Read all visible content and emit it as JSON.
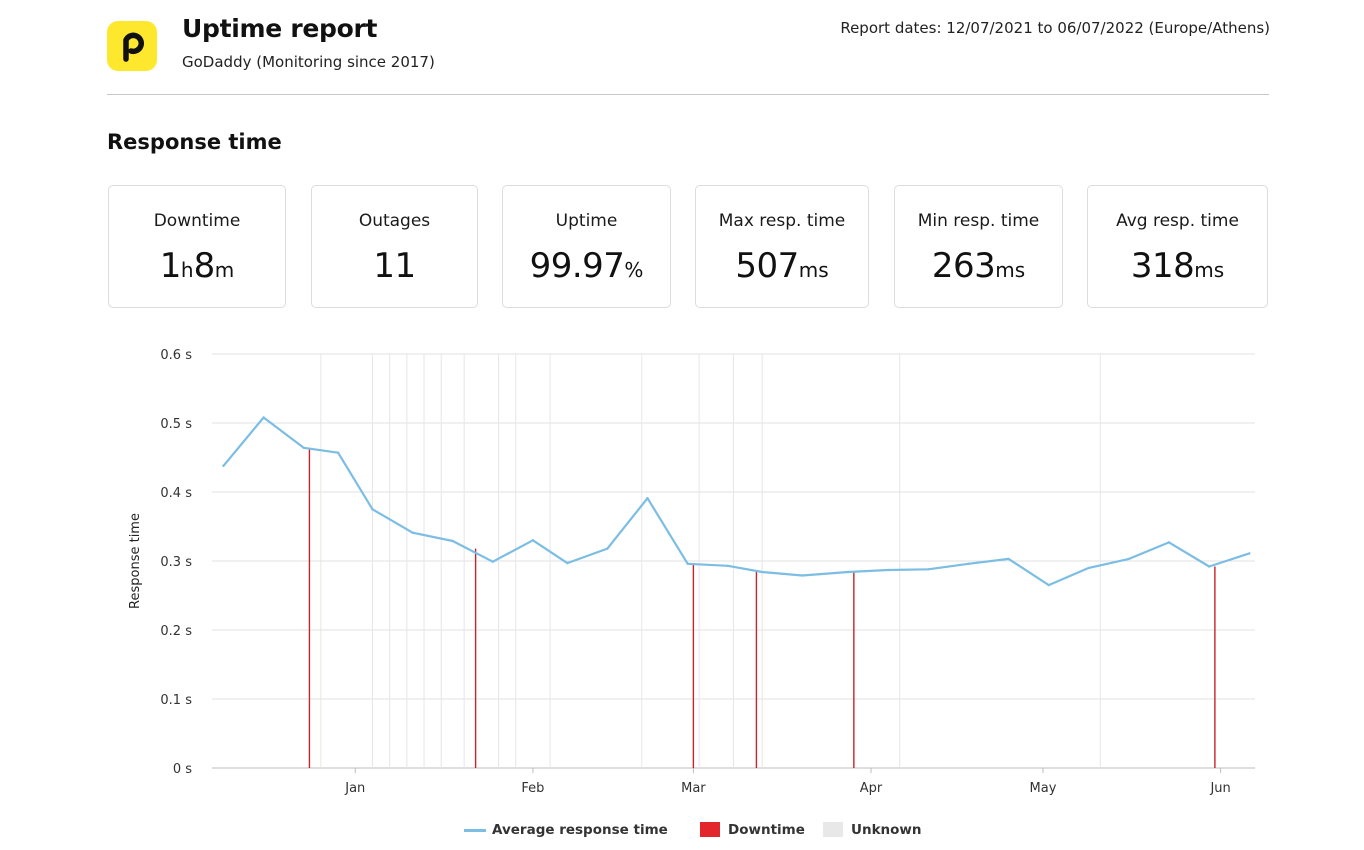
{
  "header": {
    "title": "Uptime report",
    "subtitle": "GoDaddy (Monitoring since 2017)",
    "report_dates": "Report dates: 12/07/2021 to 06/07/2022 (Europe/Athens)",
    "logo_color": "#fde82e"
  },
  "section_title": "Response time",
  "stats": [
    {
      "label": "Downtime",
      "value_parts": [
        {
          "text": "1",
          "unit": false
        },
        {
          "text": "h",
          "unit": true
        },
        {
          "text": "8",
          "unit": false
        },
        {
          "text": "m",
          "unit": true
        }
      ]
    },
    {
      "label": "Outages",
      "value_parts": [
        {
          "text": "11",
          "unit": false
        }
      ]
    },
    {
      "label": "Uptime",
      "value_parts": [
        {
          "text": "99.97",
          "unit": false
        },
        {
          "text": "%",
          "unit": true
        }
      ]
    },
    {
      "label": "Max resp. time",
      "value_parts": [
        {
          "text": "507",
          "unit": false
        },
        {
          "text": "ms",
          "unit": true
        }
      ]
    },
    {
      "label": "Min resp. time",
      "value_parts": [
        {
          "text": "263",
          "unit": false
        },
        {
          "text": "ms",
          "unit": true
        }
      ]
    },
    {
      "label": "Avg resp. time",
      "value_parts": [
        {
          "text": "318",
          "unit": false
        },
        {
          "text": "ms",
          "unit": true
        }
      ]
    }
  ],
  "chart_data": {
    "type": "line",
    "title": "",
    "xlabel": "",
    "ylabel": "Response time",
    "x_type": "date",
    "x_range": [
      "2021-12-07",
      "2022-06-07"
    ],
    "ylim": [
      0,
      0.6
    ],
    "y_ticks": [
      0,
      0.1,
      0.2,
      0.3,
      0.4,
      0.5,
      0.6
    ],
    "y_tick_labels": [
      "0 s",
      "0.1 s",
      "0.2 s",
      "0.3 s",
      "0.4 s",
      "0.5 s",
      "0.6 s"
    ],
    "x_tick_labels": [
      {
        "date": "2022-01-01",
        "label": "Jan"
      },
      {
        "date": "2022-02-01",
        "label": "Feb"
      },
      {
        "date": "2022-03-01",
        "label": "Mar"
      },
      {
        "date": "2022-04-01",
        "label": "Apr"
      },
      {
        "date": "2022-05-01",
        "label": "May"
      },
      {
        "date": "2022-06-01",
        "label": "Jun"
      }
    ],
    "grid": true,
    "legend_position": "bottom",
    "series": [
      {
        "name": "Average response time",
        "color": "#7cbde4",
        "points": [
          [
            "2021-12-09",
            0.438
          ],
          [
            "2021-12-16",
            0.508
          ],
          [
            "2021-12-23",
            0.464
          ],
          [
            "2021-12-29",
            0.457
          ],
          [
            "2022-01-04",
            0.375
          ],
          [
            "2022-01-11",
            0.341
          ],
          [
            "2022-01-18",
            0.329
          ],
          [
            "2022-01-25",
            0.299
          ],
          [
            "2022-02-01",
            0.33
          ],
          [
            "2022-02-07",
            0.297
          ],
          [
            "2022-02-14",
            0.318
          ],
          [
            "2022-02-21",
            0.391
          ],
          [
            "2022-02-28",
            0.296
          ],
          [
            "2022-03-07",
            0.293
          ],
          [
            "2022-03-13",
            0.284
          ],
          [
            "2022-03-20",
            0.279
          ],
          [
            "2022-03-28",
            0.284
          ],
          [
            "2022-04-04",
            0.287
          ],
          [
            "2022-04-11",
            0.288
          ],
          [
            "2022-04-18",
            0.296
          ],
          [
            "2022-04-25",
            0.303
          ],
          [
            "2022-05-02",
            0.265
          ],
          [
            "2022-05-09",
            0.29
          ],
          [
            "2022-05-16",
            0.303
          ],
          [
            "2022-05-23",
            0.327
          ],
          [
            "2022-05-30",
            0.292
          ],
          [
            "2022-06-06",
            0.311
          ]
        ]
      }
    ],
    "downtime_events": [
      {
        "date": "2021-12-24",
        "value": 0.464
      },
      {
        "date": "2022-01-22",
        "value": 0.318
      },
      {
        "date": "2022-03-01",
        "value": 0.296
      },
      {
        "date": "2022-03-12",
        "value": 0.285
      },
      {
        "date": "2022-03-29",
        "value": 0.284
      },
      {
        "date": "2022-05-31",
        "value": 0.292
      }
    ],
    "unknown_events": [
      "2021-12-26",
      "2022-01-04",
      "2022-01-07",
      "2022-01-10",
      "2022-01-13",
      "2022-01-16",
      "2022-01-20",
      "2022-01-26",
      "2022-01-29",
      "2022-02-04",
      "2022-02-20",
      "2022-03-02",
      "2022-03-08",
      "2022-03-13",
      "2022-04-06",
      "2022-05-11"
    ],
    "legend": [
      {
        "name": "Average response time",
        "kind": "line",
        "color": "#7cbde4"
      },
      {
        "name": "Downtime",
        "kind": "box",
        "color": "#e3262b"
      },
      {
        "name": "Unknown",
        "kind": "box",
        "color": "#e8e8e8"
      }
    ]
  }
}
